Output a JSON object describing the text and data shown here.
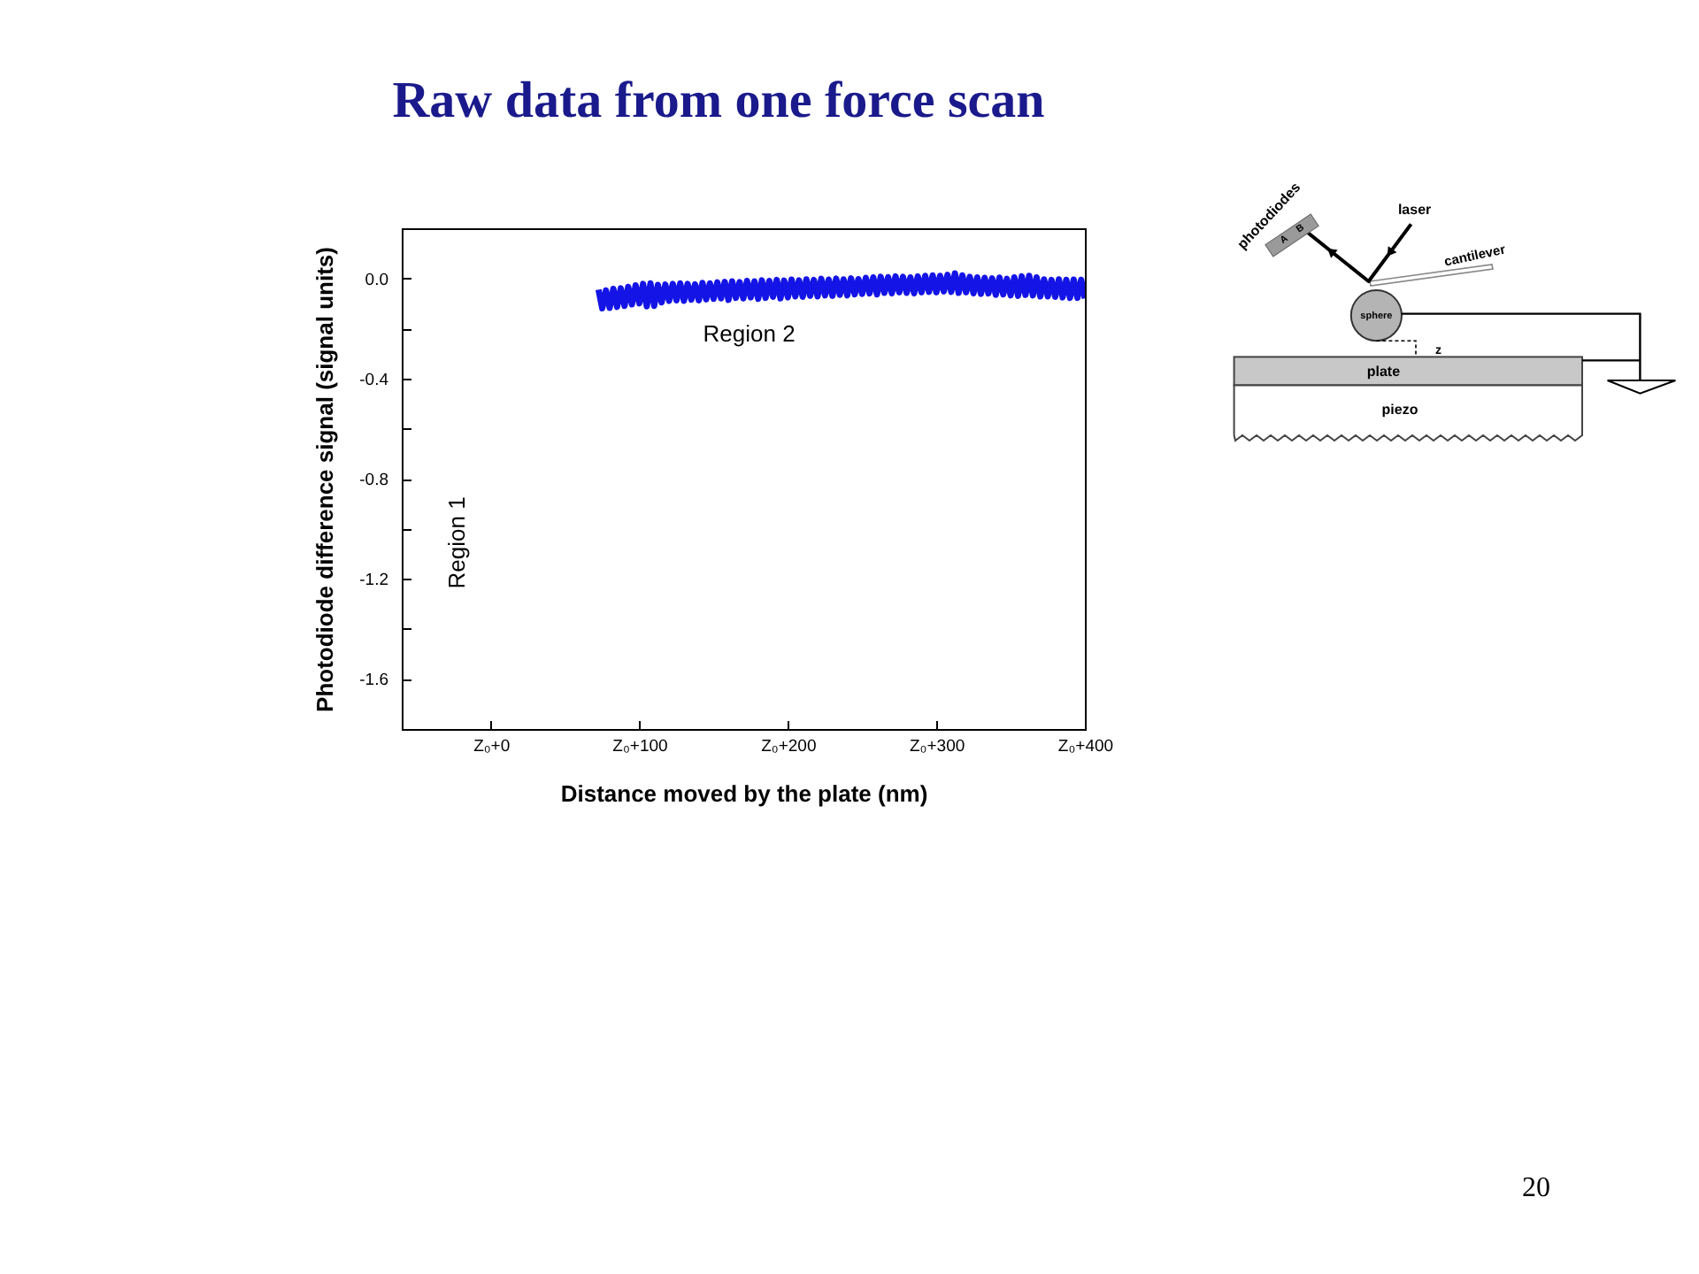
{
  "chart_data": {
    "type": "line",
    "title": "Raw data from one force scan",
    "xlabel": "Distance moved by the plate (nm)",
    "ylabel": "Photodiode difference signal (signal units)",
    "categories": [
      null,
      null,
      null,
      null,
      null,
      null,
      null,
      null,
      null,
      null,
      null,
      null,
      null,
      null,
      null,
      null,
      null,
      null,
      null,
      null,
      null,
      null,
      null,
      null,
      "Z₀+0",
      null,
      null,
      null,
      null,
      null,
      null,
      null,
      null,
      null,
      null,
      null,
      null,
      null,
      null,
      null,
      null,
      null,
      null,
      null,
      null,
      null,
      null,
      null,
      null,
      null,
      null,
      null,
      null,
      null,
      null,
      null,
      null,
      null,
      null,
      null,
      null,
      null,
      null,
      null,
      "Z₀+100",
      null,
      null,
      null,
      null,
      null,
      null,
      null,
      null,
      null,
      null,
      null,
      null,
      null,
      null,
      null,
      null,
      null,
      null,
      null,
      null,
      null,
      null,
      null,
      null,
      null,
      null,
      null,
      null,
      null,
      null,
      null,
      null,
      null,
      null,
      null,
      null,
      null,
      null,
      null,
      "Z₀+200",
      null,
      null,
      null,
      null,
      null,
      null,
      null,
      null,
      null,
      null,
      null,
      null,
      null,
      null,
      null,
      null,
      null,
      null,
      null,
      null,
      null,
      null,
      null,
      null,
      null,
      null,
      null,
      null,
      null,
      null,
      null,
      null,
      null,
      null,
      null,
      null,
      null,
      null,
      null,
      "Z₀+300",
      null,
      null,
      null,
      null,
      null,
      null,
      null,
      null,
      null,
      null,
      null,
      null,
      null,
      null,
      null,
      null,
      null,
      null,
      null,
      null,
      null,
      null,
      null,
      null,
      null,
      null,
      null,
      null,
      null,
      null,
      null,
      null,
      null,
      null,
      null,
      null,
      null,
      null,
      null,
      "Z₀+400"
    ],
    "values": [
      null,
      null,
      null,
      null,
      null,
      null,
      null,
      null,
      null,
      null,
      null,
      null,
      null,
      null,
      null,
      null,
      null,
      null,
      null,
      null,
      null,
      null,
      null,
      null,
      null,
      null,
      null,
      null,
      null,
      null,
      null,
      null,
      null,
      null,
      null,
      null,
      null,
      null,
      null,
      null,
      null,
      null,
      null,
      null,
      null,
      null,
      null,
      null,
      null,
      null,
      null,
      null,
      null,
      -0.045,
      -0.12,
      -0.048,
      -0.118,
      -0.042,
      -0.114,
      -0.04,
      -0.11,
      -0.034,
      -0.104,
      -0.028,
      -0.1,
      -0.022,
      -0.112,
      -0.02,
      -0.11,
      -0.026,
      -0.096,
      -0.025,
      -0.09,
      -0.022,
      -0.088,
      -0.02,
      -0.09,
      -0.022,
      -0.085,
      -0.024,
      -0.088,
      -0.018,
      -0.084,
      -0.02,
      -0.082,
      -0.016,
      -0.08,
      -0.014,
      -0.086,
      -0.012,
      -0.078,
      -0.015,
      -0.08,
      -0.01,
      -0.076,
      -0.012,
      -0.082,
      -0.008,
      -0.078,
      -0.01,
      -0.074,
      -0.006,
      -0.08,
      -0.009,
      -0.076,
      -0.005,
      -0.072,
      -0.008,
      -0.074,
      -0.004,
      -0.07,
      -0.006,
      -0.072,
      -0.002,
      -0.068,
      -0.005,
      -0.07,
      -0.001,
      -0.066,
      -0.004,
      -0.068,
      0.0,
      -0.064,
      -0.003,
      -0.062,
      0.002,
      -0.06,
      0.004,
      -0.064,
      0.006,
      -0.058,
      0.005,
      -0.06,
      0.008,
      -0.056,
      0.006,
      -0.058,
      0.004,
      -0.06,
      0.008,
      -0.056,
      0.01,
      -0.054,
      0.012,
      -0.056,
      0.01,
      -0.052,
      0.014,
      -0.054,
      0.02,
      -0.058,
      0.012,
      -0.056,
      0.006,
      -0.06,
      0.004,
      -0.062,
      0.002,
      -0.06,
      0.0,
      -0.066,
      0.003,
      -0.064,
      -0.002,
      -0.068,
      0.004,
      -0.07,
      0.008,
      -0.066,
      0.01,
      -0.068,
      0.004,
      -0.072,
      -0.004,
      -0.072,
      -0.006,
      -0.074,
      -0.004,
      -0.076,
      -0.006,
      -0.078,
      -0.005,
      -0.078,
      -0.006,
      -0.08
    ],
    "color": "#1414e6",
    "ylim": [
      -1.8,
      0.2
    ],
    "yticks": [
      {
        "value": 0,
        "label": "0.0"
      },
      {
        "value": -0.2,
        "label": null
      },
      -0.4,
      {
        "value": -0.6,
        "label": null
      },
      -0.8,
      {
        "value": -1,
        "label": null
      },
      -1.2,
      {
        "value": -1.4,
        "label": null
      },
      -1.6
    ],
    "annotations": [
      "Region 1",
      "Region 2",
      "photodiodes",
      "A",
      "B",
      "laser",
      "cantilever",
      "sphere",
      "z",
      "plate",
      "piezo",
      "20"
    ]
  }
}
